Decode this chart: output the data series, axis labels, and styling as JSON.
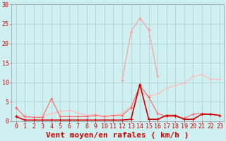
{
  "x": [
    0,
    1,
    2,
    3,
    4,
    5,
    6,
    7,
    8,
    9,
    10,
    11,
    12,
    13,
    14,
    15,
    16,
    17,
    18,
    19,
    20,
    21,
    22,
    23
  ],
  "line_pink_peak": [
    null,
    null,
    null,
    null,
    null,
    null,
    null,
    null,
    null,
    null,
    null,
    null,
    10.5,
    23.0,
    26.5,
    23.5,
    11.5,
    null,
    null,
    null,
    null,
    null,
    null,
    null
  ],
  "line_medium_red": [
    3.5,
    1.2,
    1.0,
    1.0,
    5.8,
    1.2,
    1.2,
    1.2,
    1.2,
    1.5,
    1.2,
    1.5,
    1.5,
    3.5,
    9.2,
    6.2,
    2.0,
    1.2,
    1.2,
    0.8,
    1.8,
    2.0,
    1.8,
    1.5
  ],
  "line_light_uptrend": [
    1.5,
    1.2,
    1.0,
    1.2,
    2.0,
    2.5,
    2.8,
    2.2,
    1.5,
    1.8,
    1.2,
    1.5,
    2.0,
    4.0,
    7.5,
    6.5,
    7.0,
    8.5,
    9.2,
    9.8,
    11.5,
    12.0,
    10.8,
    10.8
  ],
  "line_dark_flat": [
    1.2,
    0.3,
    0.3,
    0.3,
    0.3,
    0.3,
    0.3,
    0.3,
    0.3,
    0.3,
    0.3,
    0.3,
    0.3,
    0.5,
    9.5,
    0.5,
    0.5,
    1.5,
    1.5,
    0.5,
    0.5,
    1.8,
    1.8,
    1.5
  ],
  "color_pink_peak": "#ff9999",
  "color_medium_red": "#ff6666",
  "color_light_uptrend": "#ffbbbb",
  "color_dark_flat": "#cc0000",
  "bg_color": "#cff0f0",
  "grid_color": "#aacccc",
  "axis_color": "#cc0000",
  "ylim": [
    0,
    30
  ],
  "yticks": [
    0,
    5,
    10,
    15,
    20,
    25,
    30
  ],
  "xlabel": "Vent moyen/en rafales ( km/h )",
  "tick_fontsize": 6,
  "xlabel_fontsize": 8
}
